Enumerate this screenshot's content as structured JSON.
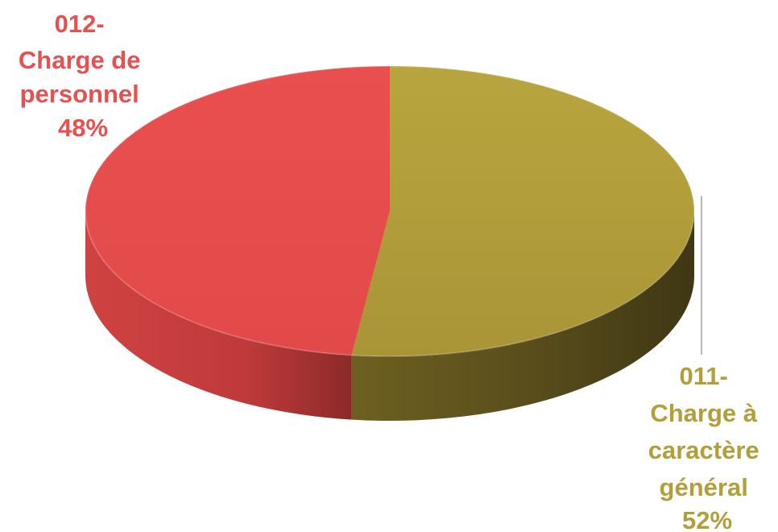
{
  "chart_data": {
    "type": "pie",
    "style": "3d",
    "title": "",
    "slices": [
      {
        "code": "011-",
        "name": "Charge à",
        "name_lines": [
          "Charge à",
          "caractère",
          "général"
        ],
        "value": 52,
        "percent_label": "52%",
        "color": "#b29f3a"
      },
      {
        "code": "012-",
        "name": "Charge de personnel",
        "name_lines": [
          "Charge de",
          "personnel"
        ],
        "value": 48,
        "percent_label": "48%",
        "color": "#e85050"
      }
    ]
  }
}
